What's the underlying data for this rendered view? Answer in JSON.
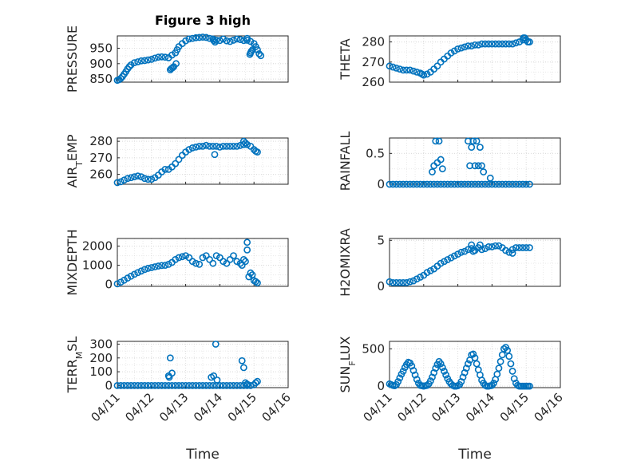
{
  "figure": {
    "title": "Figure 3 high",
    "marker_color": "#0072bd",
    "xtick_labels": [
      "04/11",
      "04/12",
      "04/13",
      "04/14",
      "04/15",
      "04/16"
    ]
  },
  "chart_data": [
    {
      "type": "scatter",
      "id": "pressure",
      "title": "Figure 3 high",
      "ylabel_main": "PRESSURE",
      "ylabel_sub": "",
      "ylabel_rest": "",
      "xlabel": "",
      "xlim": [
        0,
        5
      ],
      "ylim": [
        840,
        990
      ],
      "yticks": [
        850,
        900,
        950
      ],
      "ytick_labels": [
        "850",
        "900",
        "950"
      ],
      "grid": true,
      "series": [
        {
          "x": [
            0.0,
            0.05,
            0.1,
            0.15,
            0.2,
            0.25,
            0.3,
            0.35,
            0.4,
            0.5,
            0.6,
            0.7,
            0.8,
            0.9,
            1.0,
            1.1,
            1.2,
            1.3,
            1.4,
            1.5,
            1.6,
            1.7,
            1.75,
            1.8,
            1.9,
            2.0,
            2.1,
            2.2,
            2.3,
            2.4,
            2.5,
            2.6,
            2.7,
            2.8,
            2.9,
            3.0,
            3.1,
            3.2,
            3.3,
            3.4,
            3.5,
            3.6,
            3.7,
            3.8,
            3.9,
            4.0,
            4.05,
            4.1,
            4.15,
            4.2,
            1.55,
            1.58,
            1.62,
            1.65,
            1.72,
            2.82,
            2.86,
            3.88,
            3.92,
            3.96,
            3.8,
            3.9
          ],
          "y": [
            846,
            848,
            852,
            858,
            866,
            874,
            883,
            890,
            896,
            903,
            906,
            909,
            910,
            912,
            914,
            918,
            921,
            922,
            921,
            919,
            928,
            935,
            945,
            955,
            965,
            974,
            980,
            982,
            984,
            985,
            986,
            985,
            982,
            980,
            976,
            975,
            980,
            974,
            972,
            976,
            980,
            978,
            975,
            976,
            972,
            965,
            955,
            945,
            932,
            926,
            880,
            884,
            887,
            890,
            900,
            975,
            970,
            930,
            940,
            945,
            982,
            935
          ]
        }
      ]
    },
    {
      "type": "scatter",
      "id": "theta",
      "title": "",
      "ylabel_main": "THETA",
      "ylabel_sub": "",
      "ylabel_rest": "",
      "xlabel": "",
      "xlim": [
        0,
        5
      ],
      "ylim": [
        260,
        283
      ],
      "yticks": [
        260,
        270,
        280
      ],
      "ytick_labels": [
        "260",
        "270",
        "280"
      ],
      "grid": true,
      "series": [
        {
          "x": [
            0.0,
            0.1,
            0.2,
            0.3,
            0.4,
            0.5,
            0.6,
            0.7,
            0.8,
            0.9,
            0.95,
            1.0,
            1.1,
            1.2,
            1.3,
            1.4,
            1.5,
            1.6,
            1.7,
            1.8,
            1.9,
            2.0,
            2.1,
            2.2,
            2.3,
            2.4,
            2.5,
            2.6,
            2.7,
            2.8,
            2.9,
            3.0,
            3.1,
            3.2,
            3.3,
            3.4,
            3.5,
            3.6,
            3.7,
            3.8,
            3.9,
            4.0,
            4.05,
            4.1,
            3.92,
            3.96
          ],
          "y": [
            268,
            267.5,
            267,
            266.5,
            266,
            266,
            266,
            265.5,
            265,
            264.5,
            264,
            263.5,
            264,
            265,
            266.5,
            268,
            270,
            271.5,
            273,
            274.5,
            275.5,
            276.5,
            277,
            277.5,
            278,
            278,
            278.5,
            278.5,
            279,
            279,
            279,
            279,
            279,
            279,
            279,
            279,
            279,
            279,
            279.5,
            280,
            281,
            281,
            280,
            280,
            282,
            282
          ]
        }
      ]
    },
    {
      "type": "scatter",
      "id": "air_temp",
      "title": "",
      "ylabel_main": "AIR",
      "ylabel_sub": "T",
      "ylabel_rest": "EMP",
      "xlabel": "",
      "xlim": [
        0,
        5
      ],
      "ylim": [
        254,
        282
      ],
      "yticks": [
        260,
        270,
        280
      ],
      "ytick_labels": [
        "260",
        "270",
        "280"
      ],
      "grid": true,
      "series": [
        {
          "x": [
            0.0,
            0.1,
            0.2,
            0.3,
            0.4,
            0.5,
            0.6,
            0.7,
            0.8,
            0.9,
            1.0,
            1.1,
            1.2,
            1.3,
            1.4,
            1.5,
            1.6,
            1.7,
            1.8,
            1.9,
            2.0,
            2.1,
            2.2,
            2.3,
            2.4,
            2.5,
            2.6,
            2.7,
            2.8,
            2.9,
            3.0,
            3.1,
            3.2,
            3.3,
            3.4,
            3.5,
            3.6,
            3.7,
            3.8,
            3.9,
            4.0,
            4.05,
            4.1,
            2.85,
            3.7,
            3.75
          ],
          "y": [
            255,
            255.5,
            256.5,
            257.5,
            258,
            258.5,
            259,
            258.5,
            257.5,
            257,
            257,
            258,
            259.5,
            261.5,
            263,
            263,
            264.5,
            266.5,
            269,
            271.5,
            273.5,
            275,
            276,
            276.5,
            277,
            277,
            277.5,
            277,
            277,
            277,
            276.5,
            277,
            277,
            277,
            277,
            277,
            277.5,
            278,
            278,
            277,
            275,
            274,
            273.5,
            272,
            280,
            279
          ]
        }
      ]
    },
    {
      "type": "scatter",
      "id": "rainfall",
      "title": "",
      "ylabel_main": "RAINFALL",
      "ylabel_sub": "",
      "ylabel_rest": "",
      "xlabel": "",
      "xlim": [
        0,
        5
      ],
      "ylim": [
        0,
        0.75
      ],
      "yticks": [
        0,
        0.5
      ],
      "ytick_labels": [
        "0",
        "0.5"
      ],
      "grid": true,
      "series": [
        {
          "x": [
            0.0,
            0.1,
            0.2,
            0.3,
            0.4,
            0.5,
            0.6,
            0.7,
            0.8,
            0.9,
            1.0,
            1.1,
            1.2,
            1.3,
            1.4,
            1.5,
            1.6,
            1.7,
            1.8,
            1.9,
            2.0,
            2.1,
            2.2,
            2.3,
            2.4,
            2.5,
            2.6,
            2.7,
            2.8,
            2.9,
            3.0,
            3.1,
            3.2,
            3.3,
            3.4,
            3.5,
            3.6,
            3.7,
            3.8,
            3.9,
            4.0,
            4.1,
            1.25,
            1.3,
            1.35,
            1.4,
            1.45,
            1.5,
            1.55,
            2.3,
            2.35,
            2.4,
            2.45,
            2.5,
            2.55,
            2.6,
            2.65,
            2.7,
            2.75,
            2.95
          ],
          "y": [
            0,
            0,
            0,
            0,
            0,
            0,
            0,
            0,
            0,
            0,
            0,
            0,
            0,
            0,
            0,
            0,
            0,
            0,
            0,
            0,
            0,
            0,
            0,
            0,
            0,
            0,
            0,
            0,
            0,
            0,
            0,
            0,
            0,
            0,
            0,
            0,
            0,
            0,
            0,
            0,
            0,
            0,
            0.2,
            0.3,
            0.7,
            0.35,
            0.7,
            0.4,
            0.25,
            0.7,
            0.3,
            0.6,
            0.7,
            0.3,
            0.7,
            0.3,
            0.6,
            0.3,
            0.2,
            0.1
          ]
        }
      ]
    },
    {
      "type": "scatter",
      "id": "mixdepth",
      "title": "",
      "ylabel_main": "MIXDEPTH",
      "ylabel_sub": "",
      "ylabel_rest": "",
      "xlabel": "",
      "xlim": [
        0,
        5
      ],
      "ylim": [
        -100,
        2400
      ],
      "yticks": [
        0,
        1000,
        2000
      ],
      "ytick_labels": [
        "0",
        "1000",
        "2000"
      ],
      "grid": true,
      "series": [
        {
          "x": [
            0.0,
            0.1,
            0.2,
            0.3,
            0.4,
            0.5,
            0.6,
            0.7,
            0.8,
            0.9,
            1.0,
            1.1,
            1.2,
            1.3,
            1.4,
            1.5,
            1.6,
            1.7,
            1.8,
            1.9,
            2.0,
            2.1,
            2.2,
            2.3,
            2.4,
            2.5,
            2.6,
            2.7,
            2.8,
            2.9,
            3.0,
            3.1,
            3.2,
            3.3,
            3.4,
            3.5,
            3.6,
            3.7,
            3.8,
            3.85,
            3.9,
            3.95,
            4.0,
            4.05,
            4.1,
            3.75,
            3.8,
            3.65
          ],
          "y": [
            30,
            120,
            220,
            330,
            430,
            530,
            620,
            700,
            780,
            840,
            880,
            920,
            960,
            990,
            1000,
            1050,
            1150,
            1300,
            1400,
            1450,
            1500,
            1400,
            1200,
            1100,
            1050,
            1400,
            1500,
            1300,
            1100,
            1500,
            1400,
            1200,
            1100,
            1300,
            1500,
            1200,
            1100,
            1300,
            2200,
            400,
            600,
            500,
            200,
            150,
            80,
            1200,
            1800,
            1000
          ]
        }
      ]
    },
    {
      "type": "scatter",
      "id": "h2omixra",
      "title": "",
      "ylabel_main": "H2OMIXRA",
      "ylabel_sub": "",
      "ylabel_rest": "",
      "xlabel": "",
      "xlim": [
        0,
        5
      ],
      "ylim": [
        0,
        5.2
      ],
      "yticks": [
        0,
        5
      ],
      "ytick_labels": [
        "0",
        "5"
      ],
      "grid": true,
      "series": [
        {
          "x": [
            0.0,
            0.1,
            0.2,
            0.3,
            0.4,
            0.5,
            0.6,
            0.7,
            0.8,
            0.9,
            1.0,
            1.1,
            1.2,
            1.3,
            1.4,
            1.5,
            1.6,
            1.7,
            1.8,
            1.9,
            2.0,
            2.1,
            2.2,
            2.3,
            2.4,
            2.5,
            2.6,
            2.7,
            2.8,
            2.9,
            3.0,
            3.1,
            3.2,
            3.3,
            3.4,
            3.5,
            3.6,
            3.7,
            3.8,
            3.9,
            4.0,
            4.1,
            2.4,
            2.45,
            2.65,
            3.6
          ],
          "y": [
            0.5,
            0.4,
            0.4,
            0.4,
            0.4,
            0.4,
            0.5,
            0.6,
            0.8,
            1.0,
            1.2,
            1.5,
            1.7,
            1.9,
            2.2,
            2.5,
            2.7,
            2.9,
            3.1,
            3.3,
            3.5,
            3.7,
            3.8,
            4.0,
            4.1,
            3.9,
            4.2,
            4.0,
            4.1,
            4.3,
            4.3,
            4.4,
            4.4,
            4.2,
            3.9,
            3.7,
            4.0,
            4.2,
            4.2,
            4.2,
            4.2,
            4.2,
            4.5,
            3.8,
            4.5,
            3.6
          ]
        }
      ]
    },
    {
      "type": "scatter",
      "id": "terr_msl",
      "title": "",
      "ylabel_main": "TERR",
      "ylabel_sub": "M",
      "ylabel_rest": "SL",
      "xlabel": "Time",
      "xlim": [
        0,
        5
      ],
      "ylim": [
        -15,
        320
      ],
      "yticks": [
        0,
        100,
        200,
        300
      ],
      "ytick_labels": [
        "0",
        "100",
        "200",
        "300"
      ],
      "grid": true,
      "series": [
        {
          "x": [
            0.0,
            0.1,
            0.2,
            0.3,
            0.4,
            0.5,
            0.6,
            0.7,
            0.8,
            0.9,
            1.0,
            1.1,
            1.2,
            1.3,
            1.4,
            1.5,
            1.6,
            1.7,
            1.8,
            1.9,
            2.0,
            2.1,
            2.2,
            2.3,
            2.4,
            2.5,
            2.6,
            2.7,
            2.8,
            2.9,
            3.0,
            3.1,
            3.2,
            3.3,
            3.4,
            3.5,
            3.6,
            3.7,
            3.8,
            3.9,
            4.0,
            4.05,
            4.1,
            1.5,
            1.55,
            1.6,
            1.52,
            2.75,
            2.82,
            2.88,
            2.92,
            3.65,
            3.7,
            3.75,
            3.8
          ],
          "y": [
            0,
            0,
            0,
            0,
            0,
            0,
            0,
            0,
            0,
            0,
            0,
            0,
            0,
            0,
            0,
            0,
            0,
            0,
            0,
            0,
            0,
            0,
            0,
            0,
            0,
            0,
            0,
            0,
            0,
            0,
            0,
            0,
            0,
            0,
            0,
            0,
            0,
            0,
            0,
            0,
            5,
            20,
            30,
            70,
            200,
            90,
            60,
            60,
            70,
            300,
            40,
            180,
            130,
            20,
            10
          ]
        }
      ]
    },
    {
      "type": "scatter",
      "id": "sun_flux",
      "title": "",
      "ylabel_main": "SUN",
      "ylabel_sub": "F",
      "ylabel_rest": "LUX",
      "xlabel": "Time",
      "xlim": [
        0,
        5
      ],
      "ylim": [
        -20,
        600
      ],
      "yticks": [
        0,
        500
      ],
      "ytick_labels": [
        "0",
        "500"
      ],
      "grid": true,
      "series": [
        {
          "x": [
            0.0,
            0.05,
            0.1,
            0.15,
            0.2,
            0.25,
            0.3,
            0.35,
            0.4,
            0.45,
            0.5,
            0.55,
            0.6,
            0.65,
            0.7,
            0.75,
            0.8,
            0.85,
            0.9,
            0.95,
            1.0,
            1.05,
            1.1,
            1.15,
            1.2,
            1.25,
            1.3,
            1.35,
            1.4,
            1.45,
            1.5,
            1.55,
            1.6,
            1.65,
            1.7,
            1.75,
            1.8,
            1.85,
            1.9,
            1.95,
            2.0,
            2.05,
            2.1,
            2.15,
            2.2,
            2.25,
            2.3,
            2.35,
            2.4,
            2.45,
            2.5,
            2.55,
            2.6,
            2.65,
            2.7,
            2.75,
            2.8,
            2.85,
            2.9,
            2.95,
            3.0,
            3.05,
            3.1,
            3.15,
            3.2,
            3.25,
            3.3,
            3.35,
            3.4,
            3.45,
            3.5,
            3.55,
            3.6,
            3.65,
            3.7,
            3.75,
            3.8,
            3.85,
            3.9,
            3.95,
            4.0,
            4.05,
            4.1
          ],
          "y": [
            30,
            20,
            10,
            5,
            20,
            60,
            110,
            160,
            200,
            250,
            290,
            320,
            310,
            270,
            210,
            150,
            90,
            40,
            10,
            5,
            0,
            5,
            10,
            30,
            70,
            120,
            180,
            240,
            290,
            330,
            300,
            250,
            200,
            150,
            100,
            60,
            30,
            10,
            0,
            0,
            5,
            20,
            60,
            120,
            180,
            240,
            300,
            350,
            420,
            430,
            380,
            300,
            220,
            150,
            80,
            40,
            10,
            0,
            0,
            5,
            10,
            40,
            90,
            160,
            240,
            330,
            420,
            500,
            520,
            480,
            400,
            300,
            200,
            100,
            40,
            10,
            0,
            0,
            0,
            0,
            0,
            0,
            0
          ]
        }
      ]
    }
  ]
}
